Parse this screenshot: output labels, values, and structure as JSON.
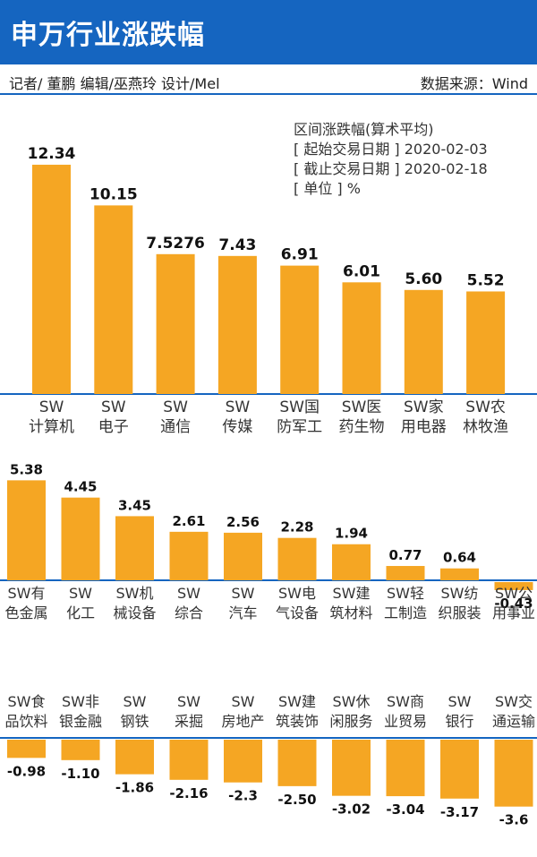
{
  "header": {
    "title": "申万行业涨跌幅",
    "credits": "记者/ 董鹏   编辑/巫燕玲   设计/Mel",
    "source": "数据来源：Wind"
  },
  "info": {
    "line1": "区间涨跌幅(算术平均)",
    "line2": "[ 起始交易日期 ] 2020-02-03",
    "line3": "[ 截止交易日期 ] 2020-02-18",
    "line4": "[ 单位 ] %"
  },
  "colors": {
    "bar": "#f5a623",
    "header": "#1565c0"
  },
  "chart_data": [
    {
      "type": "bar",
      "categories": [
        [
          "SW",
          "计算机"
        ],
        [
          "SW",
          "电子"
        ],
        [
          "SW",
          "通信"
        ],
        [
          "SW",
          "传媒"
        ],
        [
          "SW国",
          "防军工"
        ],
        [
          "SW医",
          "药生物"
        ],
        [
          "SW家",
          "用电器"
        ],
        [
          "SW农",
          "林牧渔"
        ]
      ],
      "values": [
        12.34,
        10.15,
        7.5276,
        7.43,
        6.91,
        6.01,
        5.6,
        5.52
      ],
      "value_labels": [
        "12.34",
        "10.15",
        "7.5276",
        "7.43",
        "6.91",
        "6.01",
        "5.60",
        "5.52"
      ]
    },
    {
      "type": "bar",
      "categories": [
        [
          "SW有",
          "色金属"
        ],
        [
          "SW",
          "化工"
        ],
        [
          "SW机",
          "械设备"
        ],
        [
          "SW",
          "综合"
        ],
        [
          "SW",
          "汽车"
        ],
        [
          "SW电",
          "气设备"
        ],
        [
          "SW建",
          "筑材料"
        ],
        [
          "SW轻",
          "工制造"
        ],
        [
          "SW纺",
          "织服装"
        ],
        [
          "SW公",
          "用事业"
        ]
      ],
      "values": [
        5.38,
        4.45,
        3.45,
        2.61,
        2.56,
        2.28,
        1.94,
        0.77,
        0.64,
        -0.43
      ],
      "value_labels": [
        "5.38",
        "4.45",
        "3.45",
        "2.61",
        "2.56",
        "2.28",
        "1.94",
        "0.77",
        "0.64",
        "-0.43"
      ]
    },
    {
      "type": "bar",
      "categories": [
        [
          "SW食",
          "品饮料"
        ],
        [
          "SW非",
          "银金融"
        ],
        [
          "SW",
          "钢铁"
        ],
        [
          "SW",
          "采掘"
        ],
        [
          "SW",
          "房地产"
        ],
        [
          "SW建",
          "筑装饰"
        ],
        [
          "SW休",
          "闲服务"
        ],
        [
          "SW商",
          "业贸易"
        ],
        [
          "SW",
          "银行"
        ],
        [
          "SW交",
          "通运输"
        ]
      ],
      "values": [
        -0.98,
        -1.1,
        -1.86,
        -2.16,
        -2.3,
        -2.5,
        -3.02,
        -3.04,
        -3.17,
        -3.6
      ],
      "value_labels": [
        "-0.98",
        "-1.10",
        "-1.86",
        "-2.16",
        "-2.3",
        "-2.50",
        "-3.02",
        "-3.04",
        "-3.17",
        "-3.6"
      ]
    }
  ]
}
